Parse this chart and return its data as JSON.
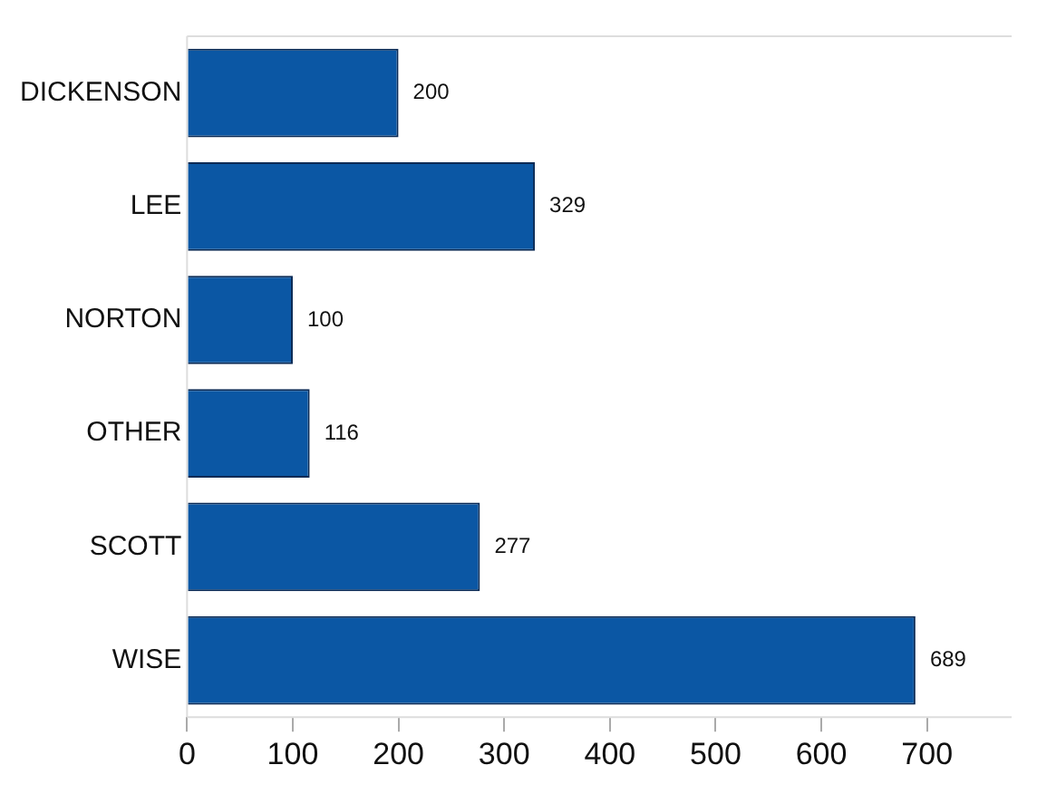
{
  "chart_data": {
    "type": "bar",
    "orientation": "horizontal",
    "categories": [
      "DICKENSON",
      "LEE",
      "NORTON",
      "OTHER",
      "SCOTT",
      "WISE"
    ],
    "values": [
      200,
      329,
      100,
      116,
      277,
      689
    ],
    "color": "#0b57a4",
    "xlim": [
      0,
      780
    ],
    "xticks": [
      0,
      100,
      200,
      300,
      400,
      500,
      600,
      700
    ],
    "grid": false,
    "legend": false,
    "data_labels": true
  }
}
